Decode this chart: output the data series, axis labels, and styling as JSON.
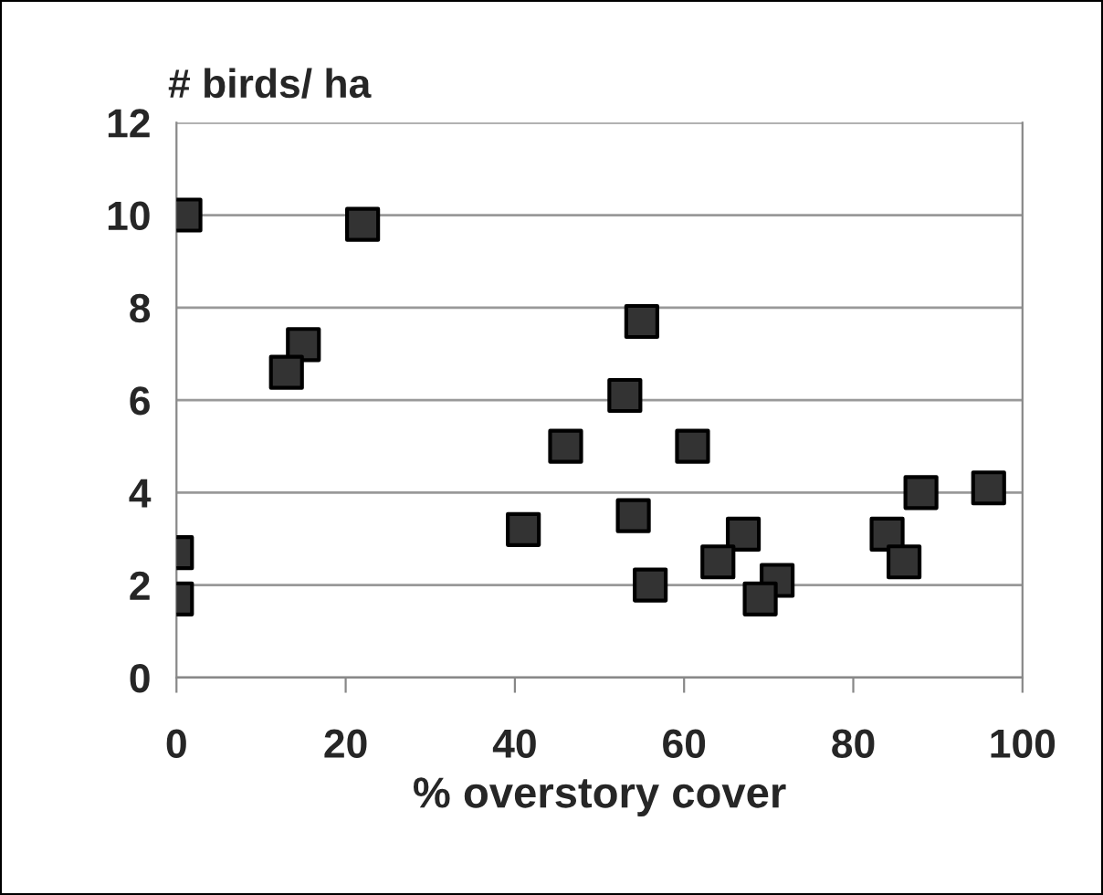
{
  "chart_data": {
    "type": "scatter",
    "xlabel": "% overstory cover",
    "ylabel": "# birds/ ha",
    "x": [
      1,
      22,
      15,
      13,
      0,
      0,
      41,
      46,
      55,
      53,
      61,
      54,
      56,
      67,
      64,
      71,
      69,
      84,
      86,
      88,
      96
    ],
    "series": [
      {
        "color": "#333333",
        "values": [
          10.0,
          9.8,
          7.2,
          6.6,
          2.7,
          1.7,
          3.2,
          5.0,
          7.7,
          6.1,
          5.0,
          3.5,
          2.0,
          3.1,
          2.5,
          2.1,
          1.7,
          3.1,
          2.5,
          4.0,
          4.1
        ]
      }
    ],
    "xlim": [
      0,
      100
    ],
    "ylim": [
      0,
      12
    ],
    "xticks": [
      0,
      20,
      40,
      60,
      80,
      100
    ],
    "yticks": [
      0,
      2,
      4,
      6,
      8,
      10,
      12
    ],
    "grid": "y",
    "marker": "square",
    "legend": false
  }
}
